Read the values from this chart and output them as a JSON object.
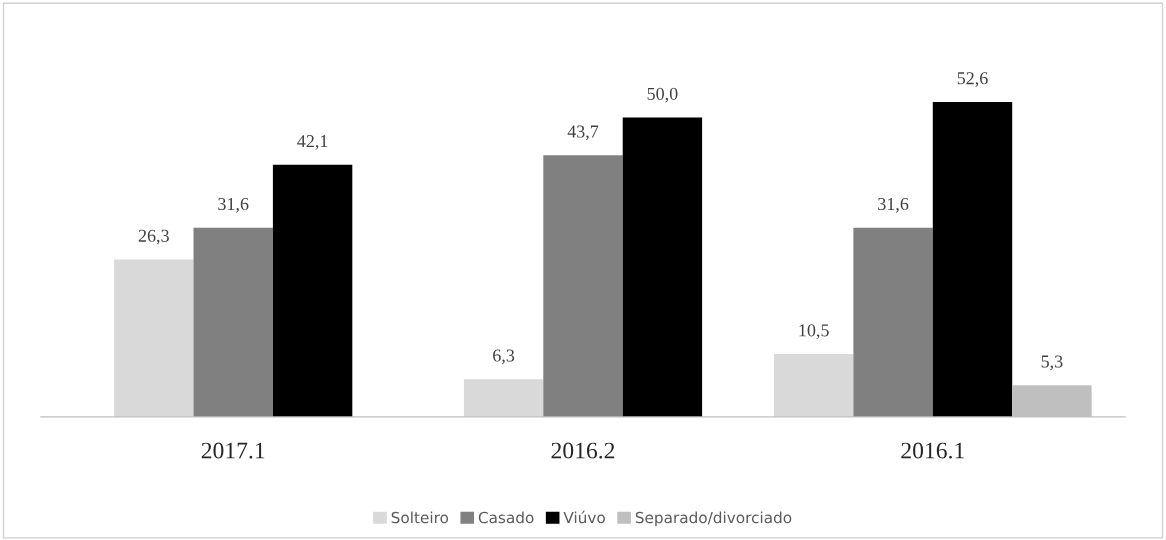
{
  "chart_data": {
    "type": "bar",
    "categories": [
      "2017.1",
      "2016.2",
      "2016.1"
    ],
    "series": [
      {
        "name": "Solteiro",
        "color": "#d9d9d9",
        "values": [
          26.3,
          6.3,
          10.5
        ],
        "value_labels": [
          "26,3",
          "6,3",
          "10,5"
        ]
      },
      {
        "name": "Casado",
        "color": "#808080",
        "values": [
          31.6,
          43.7,
          31.6
        ],
        "value_labels": [
          "31,6",
          "43,7",
          "31,6"
        ]
      },
      {
        "name": "Viúvo",
        "color": "#000000",
        "values": [
          42.1,
          50.0,
          52.6
        ],
        "value_labels": [
          "42,1",
          "50,0",
          "52,6"
        ]
      },
      {
        "name": "Separado/divorciado",
        "color": "#bfbfbf",
        "values": [
          null,
          null,
          5.3
        ],
        "value_labels": [
          null,
          null,
          "5,3"
        ]
      }
    ],
    "legend": "bottom",
    "grid": false
  }
}
